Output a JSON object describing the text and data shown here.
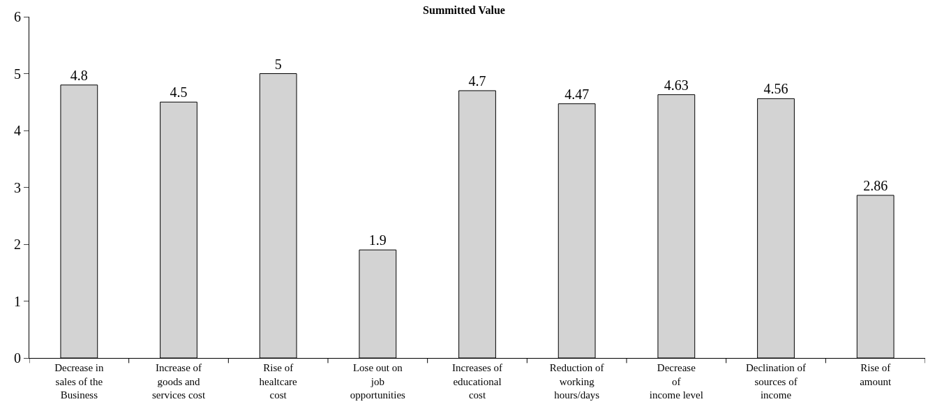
{
  "chart_data": {
    "type": "bar",
    "title": "Summitted Value",
    "categories": [
      "Decrease in\nsales of the\nBusiness",
      "Increase of\ngoods and\nservices cost",
      "Rise of\nhealtcare\ncost",
      "Lose out on\njob\nopportunities",
      "Increases of\neducational\ncost",
      "Reduction of\nworking\nhours/days",
      "Decrease\nof\nincome level",
      "Declination of\nsources of\nincome",
      "Rise of\namount"
    ],
    "values": [
      4.8,
      4.5,
      5,
      1.9,
      4.7,
      4.47,
      4.63,
      4.56,
      2.86
    ],
    "color": "#d3d3d3",
    "data_labels": true,
    "ylim": [
      0,
      6
    ],
    "yticks": [
      0,
      1,
      2,
      3,
      4,
      5,
      6
    ]
  }
}
